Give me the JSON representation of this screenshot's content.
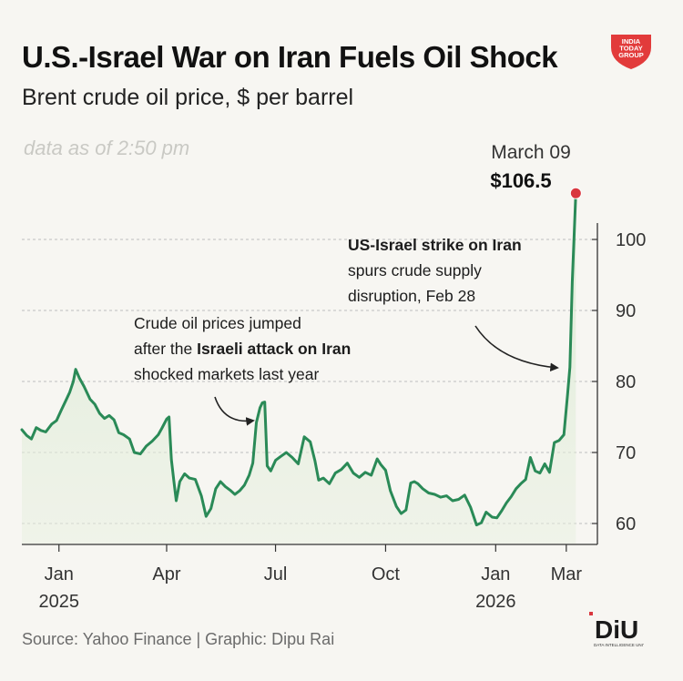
{
  "header": {
    "title": "U.S.-Israel War on Iran Fuels Oil Shock",
    "subtitle": "Brent crude oil price, $ per barrel",
    "as_of": "data as of 2:50 pm"
  },
  "branding": {
    "logo_lines": [
      "INDIA",
      "TODAY",
      "GROUP"
    ],
    "logo_color": "#e23b3b",
    "unit_logo_text": "DiU",
    "unit_logo_subtext": "DATA INTELLIGENCE UNIT"
  },
  "footer": {
    "source": "Source: Yahoo Finance | Graphic: Dipu Rai"
  },
  "colors": {
    "line": "#2a8a57",
    "area": "#e8f0e0",
    "marker": "#d9373f",
    "grid": "#bdbdbd"
  },
  "chart_data": {
    "type": "line",
    "title": "U.S.-Israel War on Iran Fuels Oil Shock",
    "subtitle": "Brent crude oil price, $ per barrel",
    "ylim": [
      57,
      108
    ],
    "yticks": [
      60,
      70,
      80,
      90,
      100
    ],
    "ytick_labels": [
      "60",
      "70",
      "80",
      "90",
      "100"
    ],
    "xlim": [
      "2024-12-01",
      "2026-03-27"
    ],
    "xticks": [
      {
        "date": "2025-01-01",
        "label": "Jan",
        "year": "2025"
      },
      {
        "date": "2025-04-01",
        "label": "Apr",
        "year": ""
      },
      {
        "date": "2025-07-01",
        "label": "Jul",
        "year": ""
      },
      {
        "date": "2025-10-01",
        "label": "Oct",
        "year": ""
      },
      {
        "date": "2026-01-01",
        "label": "Jan",
        "year": "2026"
      },
      {
        "date": "2026-03-01",
        "label": "Mar",
        "year": ""
      }
    ],
    "grid": true,
    "series": [
      {
        "x": [
          "2024-12-01",
          "2024-12-05",
          "2024-12-09",
          "2024-12-13",
          "2024-12-17",
          "2024-12-21",
          "2024-12-26",
          "2024-12-30",
          "2025-01-03",
          "2025-01-07",
          "2025-01-10",
          "2025-01-13",
          "2025-01-15",
          "2025-01-18",
          "2025-01-22",
          "2025-01-27",
          "2025-01-31",
          "2025-02-04",
          "2025-02-08",
          "2025-02-12",
          "2025-02-16",
          "2025-02-20",
          "2025-02-24",
          "2025-03-01",
          "2025-03-05",
          "2025-03-10",
          "2025-03-15",
          "2025-03-20",
          "2025-03-25",
          "2025-03-28",
          "2025-04-01",
          "2025-04-03",
          "2025-04-05",
          "2025-04-07",
          "2025-04-09",
          "2025-04-12",
          "2025-04-16",
          "2025-04-20",
          "2025-04-25",
          "2025-04-30",
          "2025-05-04",
          "2025-05-08",
          "2025-05-12",
          "2025-05-16",
          "2025-05-20",
          "2025-05-24",
          "2025-05-28",
          "2025-06-01",
          "2025-06-05",
          "2025-06-09",
          "2025-06-12",
          "2025-06-15",
          "2025-06-18",
          "2025-06-20",
          "2025-06-22",
          "2025-06-24",
          "2025-06-27",
          "2025-07-01",
          "2025-07-05",
          "2025-07-10",
          "2025-07-15",
          "2025-07-20",
          "2025-07-25",
          "2025-07-30",
          "2025-08-03",
          "2025-08-06",
          "2025-08-10",
          "2025-08-15",
          "2025-08-20",
          "2025-08-25",
          "2025-08-30",
          "2025-09-04",
          "2025-09-09",
          "2025-09-14",
          "2025-09-19",
          "2025-09-24",
          "2025-09-27",
          "2025-10-01",
          "2025-10-05",
          "2025-10-10",
          "2025-10-14",
          "2025-10-18",
          "2025-10-22",
          "2025-10-25",
          "2025-10-28",
          "2025-11-01",
          "2025-11-06",
          "2025-11-11",
          "2025-11-16",
          "2025-11-21",
          "2025-11-26",
          "2025-12-01",
          "2025-12-06",
          "2025-12-11",
          "2025-12-16",
          "2025-12-20",
          "2025-12-24",
          "2025-12-29",
          "2026-01-02",
          "2026-01-06",
          "2026-01-10",
          "2026-01-14",
          "2026-01-18",
          "2026-01-22",
          "2026-01-26",
          "2026-01-30",
          "2026-02-03",
          "2026-02-07",
          "2026-02-11",
          "2026-02-15",
          "2026-02-19",
          "2026-02-23",
          "2026-02-27",
          "2026-03-02",
          "2026-03-04",
          "2026-03-06",
          "2026-03-09"
        ],
        "values": [
          73.2,
          72.4,
          71.9,
          73.5,
          73.1,
          72.9,
          74.0,
          74.5,
          76.0,
          77.4,
          78.5,
          80.0,
          81.7,
          80.5,
          79.3,
          77.5,
          76.8,
          75.5,
          74.8,
          75.2,
          74.6,
          72.8,
          72.5,
          71.9,
          70.0,
          69.8,
          70.9,
          71.6,
          72.5,
          73.4,
          74.7,
          75.0,
          69.0,
          66.0,
          63.2,
          65.9,
          67.0,
          66.4,
          66.2,
          63.9,
          61.0,
          62.1,
          64.9,
          65.9,
          65.2,
          64.7,
          64.1,
          64.6,
          65.4,
          66.8,
          68.5,
          74.2,
          76.3,
          77.0,
          77.1,
          68.1,
          67.4,
          68.9,
          69.4,
          70.0,
          69.3,
          68.4,
          72.2,
          71.5,
          68.8,
          66.1,
          66.4,
          65.6,
          67.1,
          67.6,
          68.5,
          67.1,
          66.5,
          67.2,
          66.8,
          69.1,
          68.3,
          67.5,
          64.6,
          62.4,
          61.4,
          61.9,
          65.7,
          65.9,
          65.6,
          64.9,
          64.3,
          64.1,
          63.7,
          63.9,
          63.2,
          63.4,
          64.0,
          62.3,
          59.8,
          60.1,
          61.6,
          60.9,
          60.8,
          61.8,
          62.9,
          63.8,
          64.9,
          65.6,
          66.2,
          69.3,
          67.4,
          67.1,
          68.4,
          67.2,
          71.4,
          71.7,
          72.5,
          78.1,
          82.0,
          94.0,
          106.5
        ]
      }
    ],
    "annotations": [
      {
        "label": "March 09"
      },
      {
        "label": "$106.5"
      },
      {
        "lines": [
          [
            {
              "text": "US-Israel strike on Iran",
              "bold": true
            }
          ],
          [
            {
              "text": "spurs crude supply",
              "bold": false
            }
          ],
          [
            {
              "text": "disruption, Feb 28",
              "bold": false
            }
          ]
        ]
      },
      {
        "lines": [
          [
            {
              "text": "Crude oil prices jumped",
              "bold": false
            }
          ],
          [
            {
              "text": "after the ",
              "bold": false
            },
            {
              "text": "Israeli attack on Iran",
              "bold": true
            }
          ],
          [
            {
              "text": "shocked markets last year",
              "bold": false
            }
          ]
        ]
      }
    ]
  }
}
